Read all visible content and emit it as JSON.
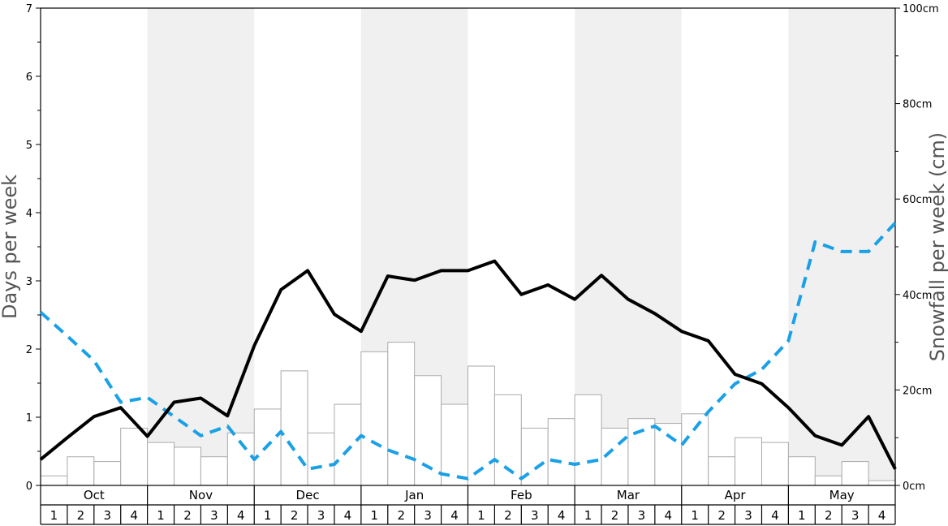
{
  "chart_data": {
    "type": "bar+line",
    "left_axis": {
      "label": "Days per week",
      "ylim": [
        0,
        7
      ],
      "ticks": [
        "0",
        "1",
        "2",
        "3",
        "4",
        "5",
        "6",
        "7"
      ]
    },
    "right_axis": {
      "label": "Snowfall per week (cm)",
      "ylim": [
        0,
        100
      ],
      "ticks": [
        "0cm",
        "20cm",
        "40cm",
        "60cm",
        "80cm",
        "100cm"
      ]
    },
    "months": [
      "Oct",
      "Nov",
      "Dec",
      "Jan",
      "Feb",
      "Mar",
      "Apr",
      "May"
    ],
    "weeks": [
      "1",
      "2",
      "3",
      "4"
    ],
    "colors": {
      "solid_line": "#000000",
      "dashed_line": "#1aa0e6",
      "bar_fill": "#ffffff",
      "bar_stroke": "#aaaaaa",
      "band": "#f0f0f0"
    },
    "bars_cm": [
      2,
      6,
      5,
      12,
      9,
      8,
      6,
      11,
      16,
      24,
      11,
      17,
      28,
      30,
      23,
      17,
      25,
      19,
      12,
      14,
      19,
      12,
      14,
      13,
      15,
      6,
      10,
      9,
      6,
      2,
      5,
      1
    ],
    "solid_days": [
      0.38,
      0.7,
      1.01,
      1.14,
      0.72,
      1.22,
      1.28,
      1.02,
      2.05,
      2.87,
      3.15,
      2.51,
      2.26,
      3.07,
      3.01,
      3.15,
      3.15,
      3.29,
      2.8,
      2.94,
      2.73,
      3.08,
      2.73,
      2.52,
      2.26,
      2.12,
      1.63,
      1.49,
      1.14,
      0.73,
      0.59,
      1.01,
      0.24
    ],
    "dashed_days": [
      2.54,
      2.19,
      1.83,
      1.22,
      1.29,
      1.01,
      0.73,
      0.87,
      0.38,
      0.79,
      0.24,
      0.31,
      0.73,
      0.52,
      0.38,
      0.17,
      0.1,
      0.38,
      0.1,
      0.38,
      0.31,
      0.38,
      0.73,
      0.87,
      0.59,
      1.08,
      1.49,
      1.7,
      2.12,
      3.57,
      3.43,
      3.43,
      3.85
    ]
  }
}
